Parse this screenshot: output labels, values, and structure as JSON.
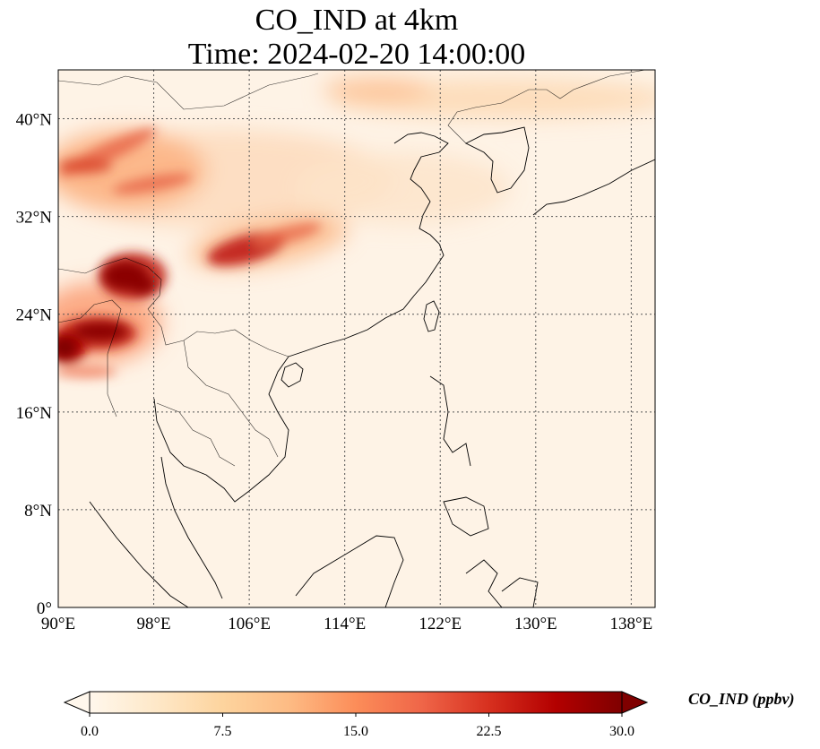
{
  "title": {
    "line1": "CO_IND at 4km",
    "line2": "Time: 2024-02-20 14:00:00"
  },
  "map": {
    "lon_range": [
      90,
      140
    ],
    "lat_range": [
      0,
      44
    ],
    "lon_ticks": [
      "90°E",
      "98°E",
      "106°E",
      "114°E",
      "122°E",
      "130°E",
      "138°E"
    ],
    "lat_ticks": [
      "0°",
      "8°N",
      "16°N",
      "24°N",
      "32°N",
      "40°N"
    ],
    "gridlines": true,
    "hotspots": [
      {
        "lon": 94.5,
        "lat": 27.3,
        "level": 30
      },
      {
        "lon": 93.5,
        "lat": 23.2,
        "level": 30
      },
      {
        "lon": 90.5,
        "lat": 22.0,
        "level": 30
      },
      {
        "lon": 104.0,
        "lat": 29.5,
        "level": 24
      },
      {
        "lon": 95.0,
        "lat": 37.0,
        "level": 18
      },
      {
        "lon": 97.0,
        "lat": 35.0,
        "level": 14
      },
      {
        "lon": 108.0,
        "lat": 31.0,
        "level": 14
      }
    ]
  },
  "colorbar": {
    "label": "CO_IND (ppbv)",
    "min": 0,
    "max": 30,
    "extend": "both",
    "colormap": "OrRd",
    "ticks": [
      "0.0",
      "7.5",
      "15.0",
      "22.5",
      "30.0"
    ],
    "colors": [
      "#fff7ec",
      "#fee8c8",
      "#fdd49e",
      "#fdbb84",
      "#fc8d59",
      "#ef6548",
      "#d7301f",
      "#b30000",
      "#7f0000"
    ]
  }
}
